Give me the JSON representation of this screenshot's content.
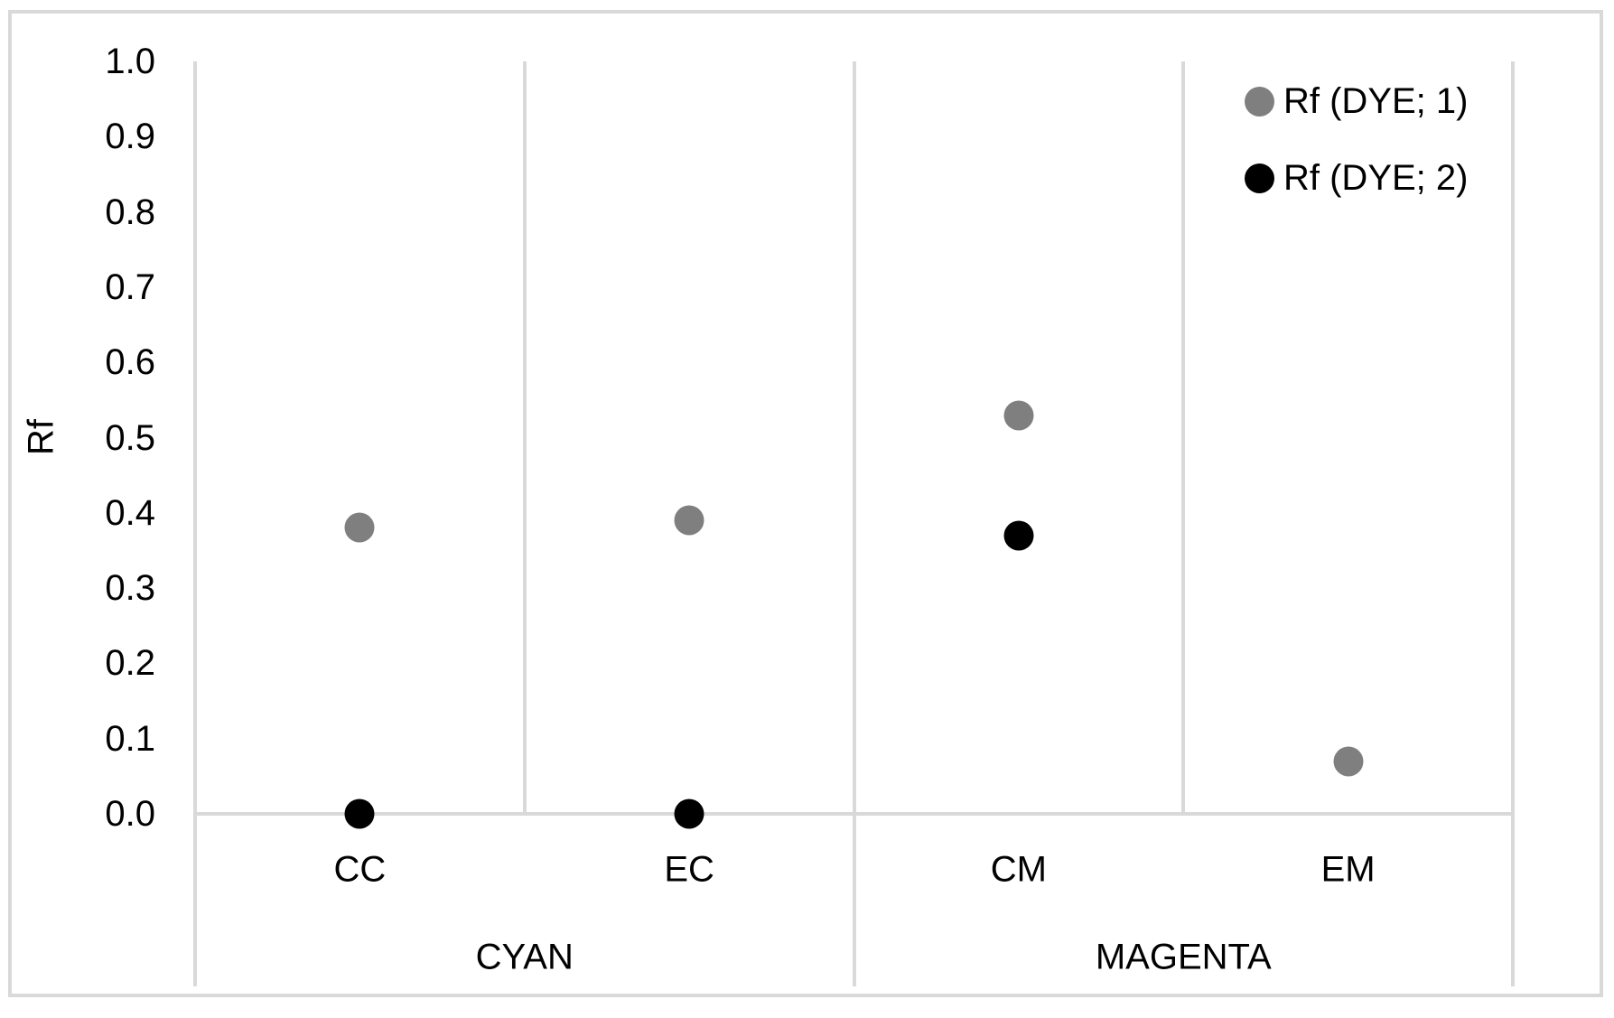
{
  "chart_data": {
    "type": "scatter",
    "title": "",
    "xlabel": "",
    "ylabel": "Rf",
    "ylim": [
      0.0,
      1.0
    ],
    "ytick_labels": [
      "1.0",
      "0.9",
      "0.8",
      "0.7",
      "0.6",
      "0.5",
      "0.4",
      "0.3",
      "0.2",
      "0.1",
      "0.0"
    ],
    "grid": "vertical-category-boundaries-only",
    "legend_position": "top-right-inside",
    "axis_color": "#d9d9d9",
    "categories": [
      "CC",
      "EC",
      "CM",
      "EM"
    ],
    "groups": [
      {
        "label": "CYAN",
        "category_indexes": [
          0,
          1
        ]
      },
      {
        "label": "MAGENTA",
        "category_indexes": [
          2,
          3
        ]
      }
    ],
    "series": [
      {
        "name": "Rf (DYE; 1)",
        "color": "#7f7f7f",
        "values": [
          0.38,
          0.39,
          0.53,
          0.07
        ]
      },
      {
        "name": "Rf (DYE; 2)",
        "color": "#000000",
        "values": [
          0.0,
          0.0,
          0.37,
          null
        ]
      }
    ]
  }
}
